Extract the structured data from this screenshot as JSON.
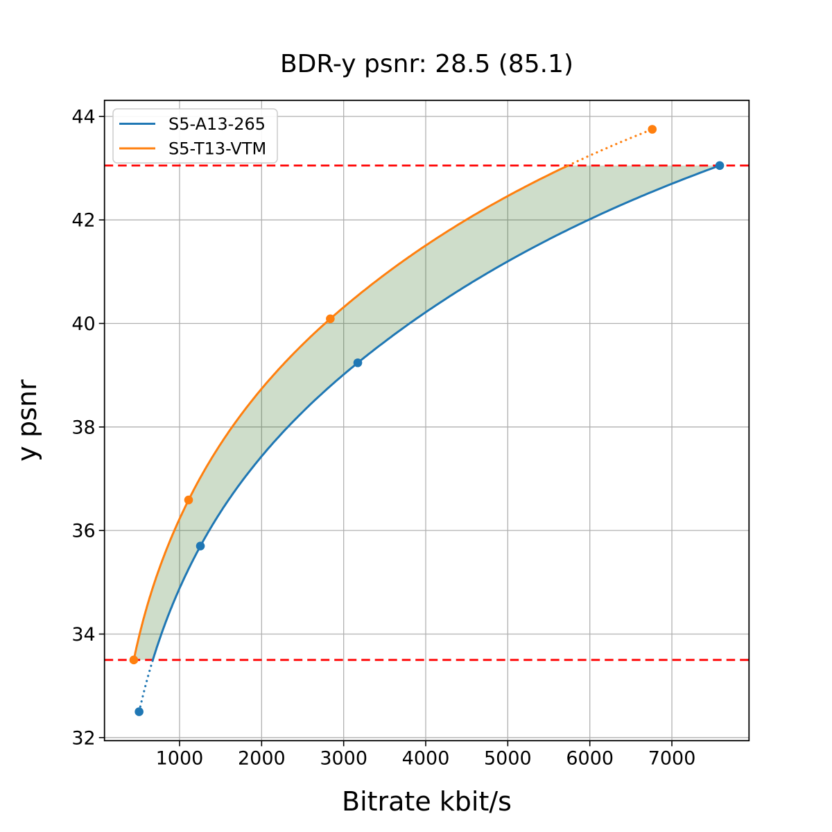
{
  "chart_data": {
    "type": "line",
    "title": "BDR-y psnr: 28.5 (85.1)",
    "xlabel": "Bitrate kbit/s",
    "ylabel": "y psnr",
    "xlim": [
      85,
      7940
    ],
    "ylim": [
      31.94,
      44.31
    ],
    "xticks": [
      1000,
      2000,
      3000,
      4000,
      5000,
      6000,
      7000
    ],
    "yticks": [
      32,
      34,
      36,
      38,
      40,
      42,
      44
    ],
    "grid": true,
    "legend_position": "upper left",
    "series": [
      {
        "name": "S5-A13-265",
        "color": "#1f77b4",
        "x": [
          507,
          1254,
          3172,
          7583
        ],
        "y": [
          32.5,
          35.7,
          39.24,
          43.05
        ],
        "markers": true,
        "interpolation": "pchip-log-x"
      },
      {
        "name": "S5-T13-VTM",
        "color": "#ff7f0e",
        "x": [
          442,
          1110,
          2837,
          6761
        ],
        "y": [
          33.5,
          36.59,
          40.09,
          43.75
        ],
        "markers": true,
        "interpolation": "pchip-log-x"
      }
    ],
    "ref_lines": {
      "y": [
        33.5,
        43.05
      ],
      "color": "#ff0000",
      "style": "dashed",
      "meaning": "psnr overlap interval bounds"
    },
    "fill_between": {
      "between": [
        "S5-T13-VTM",
        "S5-A13-265"
      ],
      "y_range": [
        33.5,
        43.05
      ],
      "color": "#2a6e19",
      "opacity": 0.23
    },
    "out_of_overlap_style": "dotted",
    "colors": {
      "grid": "#b0b0b0",
      "axis": "#000000",
      "background": "#ffffff",
      "legend_border": "#cccccc"
    }
  }
}
